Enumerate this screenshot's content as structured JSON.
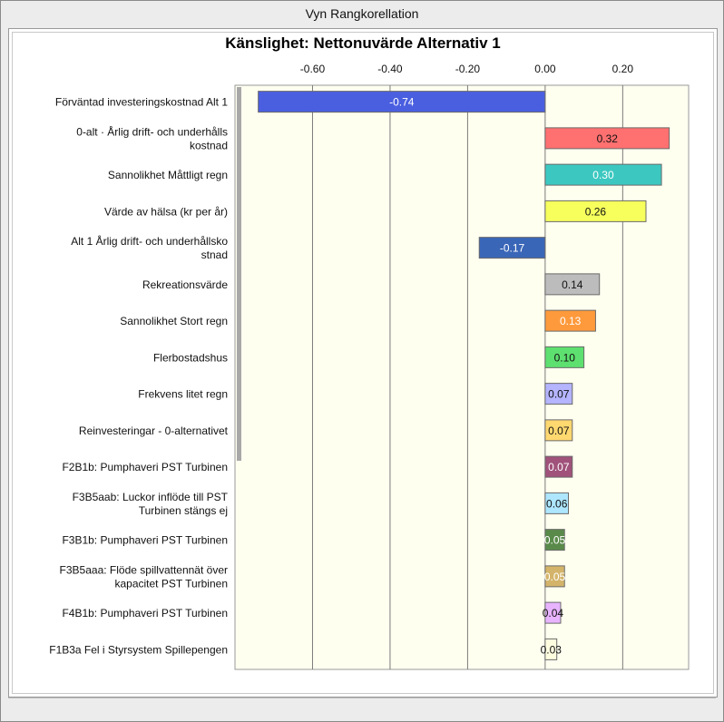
{
  "window": {
    "title": "Vyn Rangkorellation"
  },
  "chart_data": {
    "type": "bar",
    "orientation": "horizontal",
    "title": "Känslighet: Nettonuvärde Alternativ 1",
    "xlim": [
      -0.8,
      0.37
    ],
    "x_ticks": [
      -0.6,
      -0.4,
      -0.2,
      0.0,
      0.2
    ],
    "x_tick_labels": [
      "-0.60",
      "-0.40",
      "-0.20",
      "0.00",
      "0.20"
    ],
    "categories": [
      [
        "Förväntad investeringskostnad Alt 1"
      ],
      [
        "0-alt · Årlig drift- och underhålls",
        "kostnad"
      ],
      [
        "Sannolikhet Måttligt regn"
      ],
      [
        "Värde av hälsa (kr per år)"
      ],
      [
        "Alt 1 Årlig drift- och underhållsko",
        "stnad"
      ],
      [
        "Rekreationsvärde"
      ],
      [
        "Sannolikhet Stort regn"
      ],
      [
        "Flerbostadshus"
      ],
      [
        "Frekvens litet regn"
      ],
      [
        "Reinvesteringar - 0-alternativet"
      ],
      [
        "F2B1b: Pumphaveri PST Turbinen"
      ],
      [
        "F3B5aab: Luckor inflöde till PST",
        "Turbinen stängs ej"
      ],
      [
        "F3B1b: Pumphaveri PST Turbinen"
      ],
      [
        "F3B5aaa: Flöde spillvattennät över",
        "kapacitet PST Turbinen"
      ],
      [
        "F4B1b: Pumphaveri PST Turbinen"
      ],
      [
        "F1B3a Fel i Styrsystem Spillepengen"
      ]
    ],
    "values": [
      -0.74,
      0.32,
      0.3,
      0.26,
      -0.17,
      0.14,
      0.13,
      0.1,
      0.07,
      0.07,
      0.07,
      0.06,
      0.05,
      0.05,
      0.04,
      0.03
    ],
    "value_labels": [
      "-0.74",
      "0.32",
      "0.30",
      "0.26",
      "-0.17",
      "0.14",
      "0.13",
      "0.10",
      "0.07",
      "0.07",
      "0.07",
      "0.06",
      "0.05",
      "0.05",
      "0.04",
      "0.03"
    ],
    "colors": [
      "#4a5fe0",
      "#ff7070",
      "#3cc8c0",
      "#f6ff5c",
      "#3a66b8",
      "#bcbcbc",
      "#ff9a3c",
      "#5ee070",
      "#b4b4ff",
      "#ffd870",
      "#a0527a",
      "#aee6ff",
      "#5a8a4a",
      "#d4b46a",
      "#e8b4ff",
      "#fffde0"
    ],
    "label_colors": [
      "#ffffff",
      "#111111",
      "#ffffff",
      "#111111",
      "#ffffff",
      "#111111",
      "#ffffff",
      "#111111",
      "#111111",
      "#111111",
      "#ffffff",
      "#111111",
      "#ffffff",
      "#ffffff",
      "#111111",
      "#111111"
    ]
  }
}
